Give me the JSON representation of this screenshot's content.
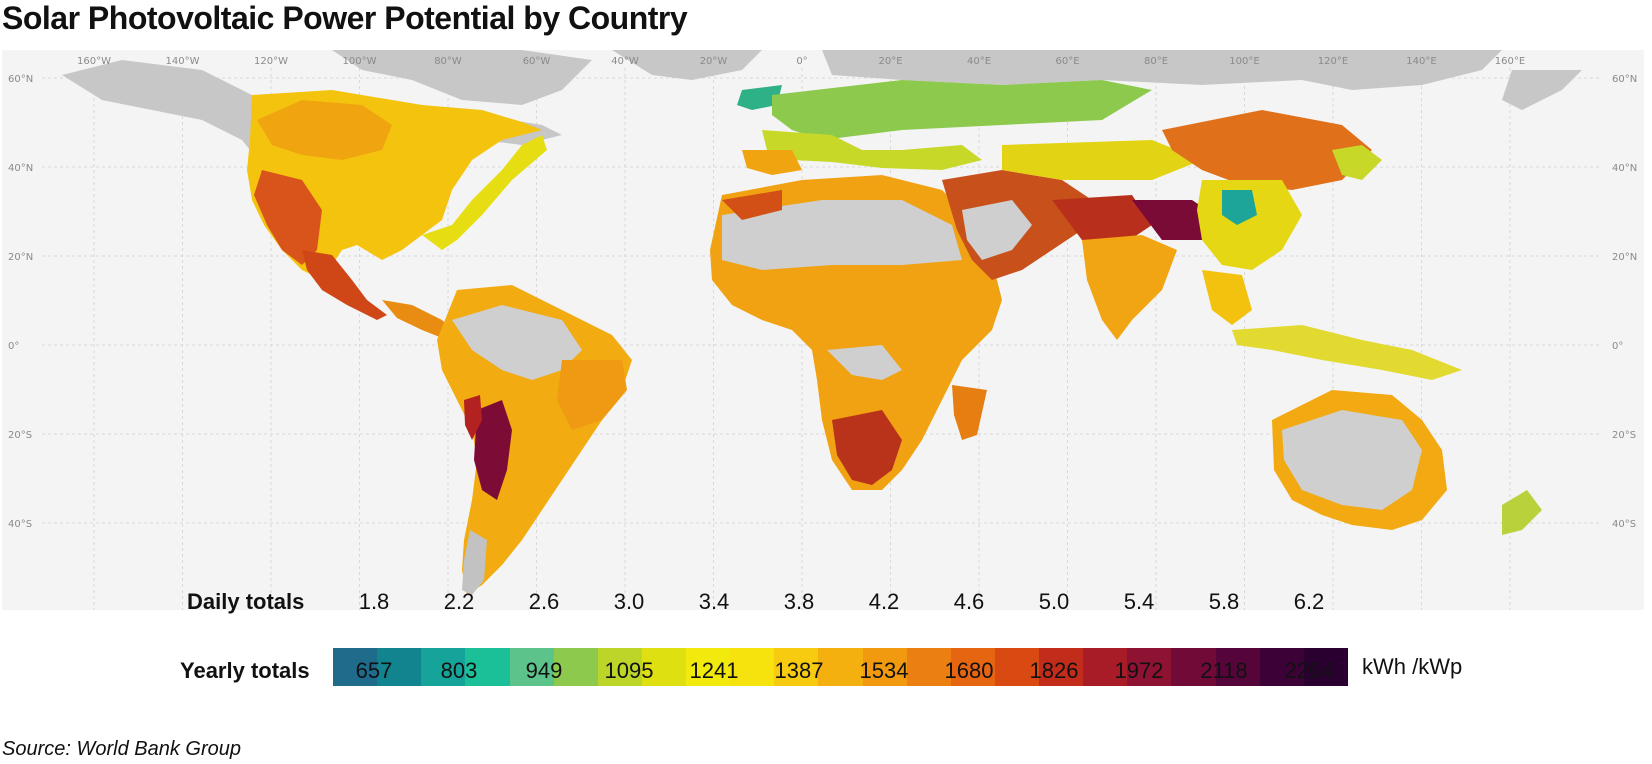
{
  "title": "Solar Photovoltaic Power Potential by Country",
  "map": {
    "longitude_labels": [
      "160°W",
      "140°W",
      "120°W",
      "100°W",
      "80°W",
      "60°W",
      "40°W",
      "20°W",
      "0°",
      "20°E",
      "40°E",
      "60°E",
      "80°E",
      "100°E",
      "120°E",
      "140°E",
      "160°E"
    ],
    "latitude_labels": [
      "60°N",
      "40°N",
      "20°N",
      "0°",
      "20°S",
      "40°S"
    ]
  },
  "legend": {
    "daily_label": "Daily totals",
    "yearly_label": "Yearly totals",
    "unit": "kWh /kWp",
    "daily_values": [
      "1.8",
      "2.2",
      "2.6",
      "3.0",
      "3.4",
      "3.8",
      "4.2",
      "4.6",
      "5.0",
      "5.4",
      "5.8",
      "6.2"
    ],
    "yearly_values": [
      "657",
      "803",
      "949",
      "1095",
      "1241",
      "1387",
      "1534",
      "1680",
      "1826",
      "1972",
      "2118",
      "2264"
    ],
    "colors": [
      "#1e6b8c",
      "#12848f",
      "#16a49a",
      "#1bbf98",
      "#5cc38a",
      "#8cc94d",
      "#bdd528",
      "#dee012",
      "#f2ea0c",
      "#f6e20c",
      "#f7cb10",
      "#f4b00e",
      "#f19a0f",
      "#ec7f12",
      "#e66510",
      "#d94a12",
      "#c22c1a",
      "#a81c28",
      "#8e1232",
      "#720a38",
      "#55053a",
      "#3c0238",
      "#2a0030"
    ]
  },
  "source": "Source: World Bank Group"
}
